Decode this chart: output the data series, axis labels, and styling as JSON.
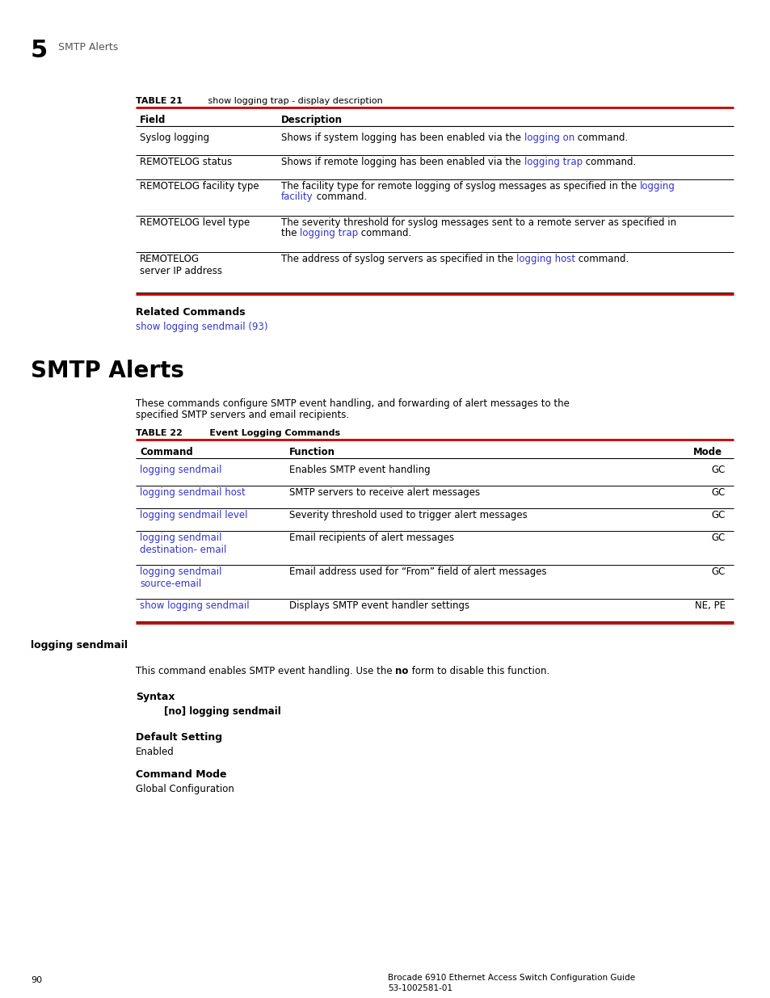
{
  "page_num": "90",
  "chapter_num": "5",
  "chapter_title": "SMTP Alerts",
  "bg_color": "#ffffff",
  "red_color": "#cc0000",
  "link_color": "#3333cc",
  "table21_rows": [
    {
      "field": "Syslog logging",
      "desc_plain": "Shows if system logging has been enabled via the ",
      "desc_link": "logging on",
      "desc_end": " command.",
      "two_line_field": false,
      "two_line_desc": false
    },
    {
      "field": "REMOTELOG status",
      "desc_plain": "Shows if remote logging has been enabled via the ",
      "desc_link": "logging trap",
      "desc_end": " command.",
      "two_line_field": false,
      "two_line_desc": false
    },
    {
      "field": "REMOTELOG facility type",
      "desc_plain": "The facility type for remote logging of syslog messages as specified in the ",
      "desc_link": "logging\nfacility",
      "desc_end": " command.",
      "two_line_field": false,
      "two_line_desc": true
    },
    {
      "field": "REMOTELOG level type",
      "desc_plain": "The severity threshold for syslog messages sent to a remote server as specified in\nthe ",
      "desc_link": "logging trap",
      "desc_end": " command.",
      "two_line_field": false,
      "two_line_desc": true
    },
    {
      "field": "REMOTELOG\nserver IP address",
      "desc_plain": "The address of syslog servers as specified in the ",
      "desc_link": "logging host",
      "desc_end": " command.",
      "two_line_field": true,
      "two_line_desc": false
    }
  ],
  "table22_rows": [
    {
      "cmd": "logging sendmail",
      "func": "Enables SMTP event handling",
      "mode": "GC",
      "two_line": false
    },
    {
      "cmd": "logging sendmail host",
      "func": "SMTP servers to receive alert messages",
      "mode": "GC",
      "two_line": false
    },
    {
      "cmd": "logging sendmail level",
      "func": "Severity threshold used to trigger alert messages",
      "mode": "GC",
      "two_line": false
    },
    {
      "cmd": "logging sendmail\ndestination- email",
      "func": "Email recipients of alert messages",
      "mode": "GC",
      "two_line": true
    },
    {
      "cmd": "logging sendmail\nsource-email",
      "func": "Email address used for “From” field of alert messages",
      "mode": "GC",
      "two_line": true
    },
    {
      "cmd": "show logging sendmail",
      "func": "Displays SMTP event handler settings",
      "mode": "NE, PE",
      "two_line": false
    }
  ]
}
